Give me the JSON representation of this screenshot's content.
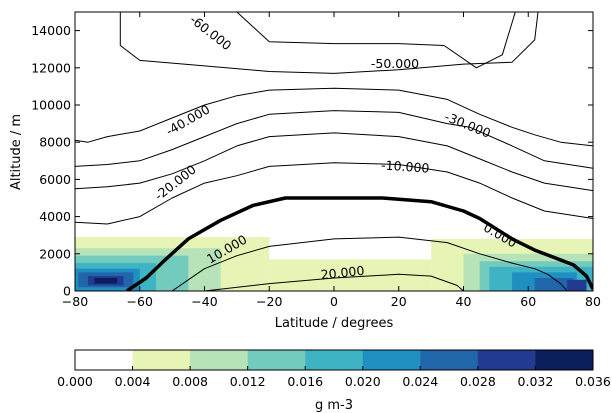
{
  "chart_data": {
    "type": "heatmap",
    "xlabel": "Latitude / degrees",
    "ylabel": "Altitude / m",
    "xlim": [
      -80,
      80
    ],
    "ylim": [
      0,
      15000
    ],
    "x_ticks": [
      -80,
      -60,
      -40,
      -20,
      0,
      20,
      40,
      60,
      80
    ],
    "x_tick_labels": [
      "−80",
      "−60",
      "−40",
      "−20",
      "0",
      "20",
      "40",
      "60",
      "80"
    ],
    "y_ticks": [
      0,
      2000,
      4000,
      6000,
      8000,
      10000,
      12000,
      14000
    ],
    "y_tick_labels": [
      "0",
      "2000",
      "4000",
      "6000",
      "8000",
      "10000",
      "12000",
      "14000"
    ],
    "colorbar": {
      "label": "g m-3",
      "levels": [
        0.0,
        0.004,
        0.008,
        0.012,
        0.016,
        0.02,
        0.024,
        0.028,
        0.032,
        0.036
      ],
      "tick_labels": [
        "0.000",
        "0.004",
        "0.008",
        "0.012",
        "0.016",
        "0.020",
        "0.024",
        "0.028",
        "0.032",
        "0.036"
      ],
      "colors": [
        "#ffffff",
        "#e6f5b5",
        "#b6e3b8",
        "#73cbbd",
        "#3eb3c4",
        "#1e90c0",
        "#2165aa",
        "#233a93",
        "#0a1e5b"
      ]
    },
    "contour_labels": [
      "-60.000",
      "-50.000",
      "-40.000",
      "-30.000",
      "-20.000",
      "-10.000",
      "0.000",
      "10.000",
      "20.000"
    ],
    "contours": [
      {
        "level": -60,
        "points": [
          [
            -66,
            15000
          ],
          [
            -66,
            13200
          ],
          [
            -60,
            12400
          ],
          [
            -40,
            12100
          ],
          [
            -20,
            11800
          ],
          [
            0,
            11700
          ],
          [
            20,
            11900
          ],
          [
            40,
            12200
          ],
          [
            55,
            12300
          ],
          [
            62,
            13500
          ],
          [
            63,
            15000
          ]
        ]
      },
      {
        "level": -50,
        "points": [
          [
            -30,
            15000
          ],
          [
            -20,
            13400
          ],
          [
            0,
            13300
          ],
          [
            20,
            13300
          ],
          [
            34,
            13200
          ],
          [
            44,
            12000
          ],
          [
            52,
            12700
          ],
          [
            56,
            15000
          ]
        ]
      },
      {
        "level": -40,
        "points": [
          [
            -80,
            8100
          ],
          [
            -76,
            8000
          ],
          [
            -70,
            8300
          ],
          [
            -60,
            8600
          ],
          [
            -50,
            9300
          ],
          [
            -40,
            10000
          ],
          [
            -30,
            10500
          ],
          [
            -20,
            10800
          ],
          [
            0,
            10900
          ],
          [
            20,
            10800
          ],
          [
            35,
            10300
          ],
          [
            45,
            9500
          ],
          [
            55,
            8800
          ],
          [
            62,
            8400
          ],
          [
            70,
            8000
          ],
          [
            80,
            7800
          ]
        ]
      },
      {
        "level": -30,
        "points": [
          [
            -80,
            6700
          ],
          [
            -70,
            6800
          ],
          [
            -60,
            7000
          ],
          [
            -50,
            7600
          ],
          [
            -40,
            8300
          ],
          [
            -30,
            9000
          ],
          [
            -20,
            9500
          ],
          [
            0,
            9700
          ],
          [
            20,
            9600
          ],
          [
            35,
            9000
          ],
          [
            42,
            8800
          ],
          [
            55,
            7800
          ],
          [
            65,
            7000
          ],
          [
            80,
            6600
          ]
        ]
      },
      {
        "level": -20,
        "points": [
          [
            -80,
            5500
          ],
          [
            -70,
            5600
          ],
          [
            -60,
            5800
          ],
          [
            -50,
            6300
          ],
          [
            -40,
            7000
          ],
          [
            -30,
            7800
          ],
          [
            -20,
            8300
          ],
          [
            0,
            8500
          ],
          [
            20,
            8300
          ],
          [
            35,
            7800
          ],
          [
            45,
            7100
          ],
          [
            55,
            6400
          ],
          [
            65,
            5800
          ],
          [
            80,
            5400
          ]
        ]
      },
      {
        "level": -10,
        "points": [
          [
            -80,
            3700
          ],
          [
            -70,
            3600
          ],
          [
            -60,
            4000
          ],
          [
            -50,
            5000
          ],
          [
            -40,
            5800
          ],
          [
            -30,
            6200
          ],
          [
            -20,
            6700
          ],
          [
            0,
            6900
          ],
          [
            20,
            6800
          ],
          [
            35,
            6400
          ],
          [
            45,
            5800
          ],
          [
            55,
            5000
          ],
          [
            65,
            4300
          ],
          [
            80,
            3900
          ]
        ]
      },
      {
        "level": 0,
        "points": [
          [
            -64,
            0
          ],
          [
            -58,
            700
          ],
          [
            -52,
            1700
          ],
          [
            -45,
            2800
          ],
          [
            -35,
            3800
          ],
          [
            -25,
            4600
          ],
          [
            -15,
            5000
          ],
          [
            0,
            5000
          ],
          [
            15,
            5000
          ],
          [
            30,
            4800
          ],
          [
            40,
            4300
          ],
          [
            45,
            3900
          ],
          [
            55,
            2800
          ],
          [
            62,
            2200
          ],
          [
            68,
            1800
          ],
          [
            74,
            1400
          ],
          [
            78,
            800
          ],
          [
            80,
            100
          ]
        ]
      },
      {
        "level": 10,
        "points": [
          [
            -50,
            0
          ],
          [
            -45,
            600
          ],
          [
            -40,
            1200
          ],
          [
            -30,
            1900
          ],
          [
            -20,
            2400
          ],
          [
            0,
            2800
          ],
          [
            20,
            2900
          ],
          [
            35,
            2600
          ],
          [
            45,
            2000
          ],
          [
            55,
            1500
          ],
          [
            62,
            1200
          ],
          [
            66,
            900
          ],
          [
            70,
            400
          ],
          [
            72,
            0
          ]
        ]
      },
      {
        "level": 20,
        "points": [
          [
            -40,
            0
          ],
          [
            -20,
            400
          ],
          [
            0,
            700
          ],
          [
            20,
            900
          ],
          [
            30,
            800
          ],
          [
            38,
            300
          ],
          [
            40,
            0
          ]
        ]
      }
    ],
    "shaded_regions": [
      {
        "band": "0.004-0.008",
        "x": [
          -80,
          -20
        ],
        "y": [
          0,
          2900
        ]
      },
      {
        "band": "0.004-0.008",
        "x": [
          -20,
          30
        ],
        "y": [
          0,
          1700
        ]
      },
      {
        "band": "0.004-0.008",
        "x": [
          30,
          80
        ],
        "y": [
          0,
          2800
        ]
      },
      {
        "band": "0.008-0.012",
        "x": [
          -80,
          -35
        ],
        "y": [
          0,
          2300
        ]
      },
      {
        "band": "0.008-0.012",
        "x": [
          40,
          80
        ],
        "y": [
          0,
          2000
        ]
      },
      {
        "band": "0.012-0.016",
        "x": [
          -80,
          -45
        ],
        "y": [
          0,
          1900
        ]
      },
      {
        "band": "0.012-0.016",
        "x": [
          45,
          80
        ],
        "y": [
          0,
          1600
        ]
      },
      {
        "band": "0.016-0.020",
        "x": [
          -80,
          -55
        ],
        "y": [
          0,
          1500
        ]
      },
      {
        "band": "0.016-0.020",
        "x": [
          48,
          80
        ],
        "y": [
          0,
          1300
        ]
      },
      {
        "band": "0.020-0.024",
        "x": [
          -80,
          -60
        ],
        "y": [
          0,
          1200
        ]
      },
      {
        "band": "0.020-0.024",
        "x": [
          55,
          75
        ],
        "y": [
          0,
          1000
        ]
      },
      {
        "band": "0.024-0.028",
        "x": [
          -79,
          -62
        ],
        "y": [
          200,
          1000
        ]
      },
      {
        "band": "0.024-0.028",
        "x": [
          62,
          74
        ],
        "y": [
          0,
          700
        ]
      },
      {
        "band": "0.028-0.032",
        "x": [
          -76,
          -65
        ],
        "y": [
          300,
          800
        ]
      },
      {
        "band": "0.028-0.032",
        "x": [
          72,
          78
        ],
        "y": [
          0,
          600
        ]
      },
      {
        "band": "0.032-0.036",
        "x": [
          -74,
          -67
        ],
        "y": [
          400,
          700
        ]
      }
    ]
  }
}
